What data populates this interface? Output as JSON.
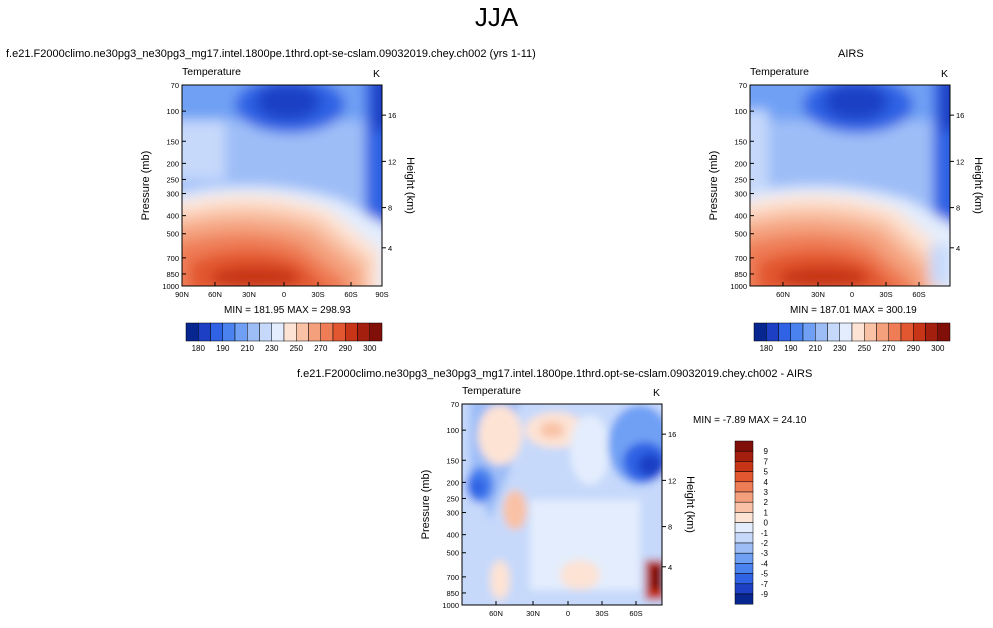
{
  "main_title": "JJA",
  "colors": {
    "scale": [
      "#08268f",
      "#1c3fc4",
      "#2f62e4",
      "#4a82ef",
      "#6fa0f4",
      "#9dbdf7",
      "#c6d9fb",
      "#e3edfd",
      "#fde3d4",
      "#f9c2a6",
      "#f4a07d",
      "#ee7c55",
      "#e2572f",
      "#c83416",
      "#a41f0d",
      "#7f0f08"
    ]
  },
  "chart_data": [
    {
      "type": "heatmap",
      "title": "f.e21.F2000climo.ne30pg3_ne30pg3_mg17.intel.1800pe.1thrd.opt-se-cslam.09032019.chey.ch002 (yrs 1-11)",
      "left_label": "Temperature",
      "right_label": "K",
      "ylabel": "Pressure (mb)",
      "y2label": "Height (km)",
      "x_ticks": [
        "90N",
        "60N",
        "30N",
        "0",
        "30S",
        "60S",
        "90S"
      ],
      "y_ticks": [
        "70",
        "100",
        "150",
        "200",
        "250",
        "300",
        "400",
        "500",
        "700",
        "850",
        "1000"
      ],
      "y2_ticks": [
        "16",
        "12",
        "8",
        "4"
      ],
      "stats": "MIN = 181.95   MAX = 298.93",
      "colorbar_labels": [
        "180",
        "190",
        "210",
        "230",
        "250",
        "270",
        "290",
        "300"
      ],
      "min": 181.95,
      "max": 298.93
    },
    {
      "type": "heatmap",
      "title": "AIRS",
      "left_label": "Temperature",
      "right_label": "K",
      "ylabel": "Pressure (mb)",
      "y2label": "Height (km)",
      "x_ticks": [
        "60N",
        "30N",
        "0",
        "30S",
        "60S"
      ],
      "y_ticks": [
        "70",
        "100",
        "150",
        "200",
        "250",
        "300",
        "400",
        "500",
        "700",
        "850",
        "1000"
      ],
      "y2_ticks": [
        "16",
        "12",
        "8",
        "4"
      ],
      "stats": "MIN = 187.01   MAX = 300.19",
      "colorbar_labels": [
        "180",
        "190",
        "210",
        "230",
        "250",
        "270",
        "290",
        "300"
      ],
      "min": 187.01,
      "max": 300.19
    },
    {
      "type": "heatmap",
      "title": "f.e21.F2000climo.ne30pg3_ne30pg3_mg17.intel.1800pe.1thrd.opt-se-cslam.09032019.chey.ch002 - AIRS",
      "left_label": "Temperature",
      "right_label": "K",
      "ylabel": "Pressure (mb)",
      "y2label": "Height (km)",
      "x_ticks": [
        "60N",
        "30N",
        "0",
        "30S",
        "60S"
      ],
      "y_ticks": [
        "70",
        "100",
        "150",
        "200",
        "250",
        "300",
        "400",
        "500",
        "700",
        "850",
        "1000"
      ],
      "y2_ticks": [
        "16",
        "12",
        "8",
        "4"
      ],
      "stats": "MIN = -7.89   MAX = 24.10",
      "colorbar_labels": [
        "9",
        "7",
        "5",
        "4",
        "3",
        "2",
        "1",
        "0",
        "-1",
        "-2",
        "-3",
        "-4",
        "-5",
        "-7",
        "-9"
      ],
      "min": -7.89,
      "max": 24.1
    }
  ]
}
